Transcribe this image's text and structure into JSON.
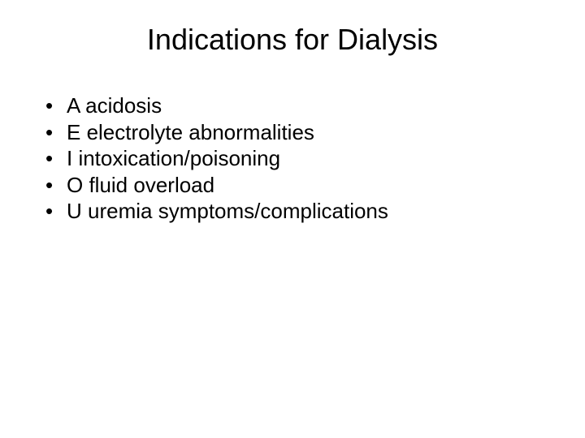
{
  "slide": {
    "title": "Indications for Dialysis",
    "title_fontsize": 36,
    "body_fontsize": 26,
    "background_color": "#ffffff",
    "text_color": "#000000",
    "bullet_char": "•",
    "bullets": [
      {
        "text": "A acidosis"
      },
      {
        "text": "E  electrolyte abnormalities"
      },
      {
        "text": "I   intoxication/poisoning"
      },
      {
        "text": "O  fluid overload"
      },
      {
        "text": "U  uremia symptoms/complications"
      }
    ]
  }
}
